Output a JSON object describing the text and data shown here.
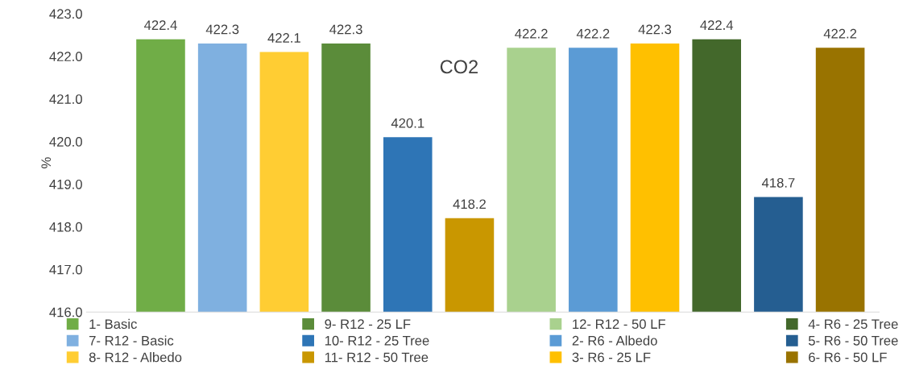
{
  "chart_data": {
    "type": "bar",
    "title": "CO2",
    "ylabel": "%",
    "categories": [
      null
    ],
    "series": [
      {
        "name": "1- Basic",
        "color": "#70ad47",
        "values": [
          422.4
        ]
      },
      {
        "name": "7- R12 - Basic",
        "color": "#7fb0e0",
        "values": [
          422.3
        ]
      },
      {
        "name": "8- R12 - Albedo",
        "color": "#ffcd33",
        "values": [
          422.1
        ]
      },
      {
        "name": "9- R12 - 25 LF",
        "color": "#5b8c3a",
        "values": [
          422.3
        ]
      },
      {
        "name": "10- R12 - 25 Tree",
        "color": "#2e75b6",
        "values": [
          420.1
        ]
      },
      {
        "name": "11- R12 - 50 Tree",
        "color": "#c99700",
        "values": [
          418.2
        ]
      },
      {
        "name": "12- R12 - 50 LF",
        "color": "#a9d18e",
        "values": [
          422.2
        ]
      },
      {
        "name": "2- R6 - Albedo",
        "color": "#5b9bd5",
        "values": [
          422.2
        ]
      },
      {
        "name": "3- R6 - 25 LF",
        "color": "#ffc000",
        "values": [
          422.3
        ]
      },
      {
        "name": "4- R6 - 25 Tree",
        "color": "#43682b",
        "values": [
          422.4
        ]
      },
      {
        "name": "5- R6 - 50 Tree",
        "color": "#255e91",
        "values": [
          418.7
        ]
      },
      {
        "name": "6- R6 - 50 LF",
        "color": "#997300",
        "values": [
          422.2
        ]
      }
    ],
    "ylim": [
      416,
      423
    ],
    "yticks": [
      {
        "value": 416,
        "label": "416.0"
      },
      {
        "value": 417,
        "label": "417.0"
      },
      {
        "value": 418,
        "label": "418.0"
      },
      {
        "value": 419,
        "label": "419.0"
      },
      {
        "value": 420,
        "label": "420.0"
      },
      {
        "value": 421,
        "label": "421.0"
      },
      {
        "value": 422,
        "label": "422.0"
      },
      {
        "value": 423,
        "label": "423.0"
      }
    ],
    "data_labels": true,
    "grid": false,
    "legend": "bottom"
  }
}
